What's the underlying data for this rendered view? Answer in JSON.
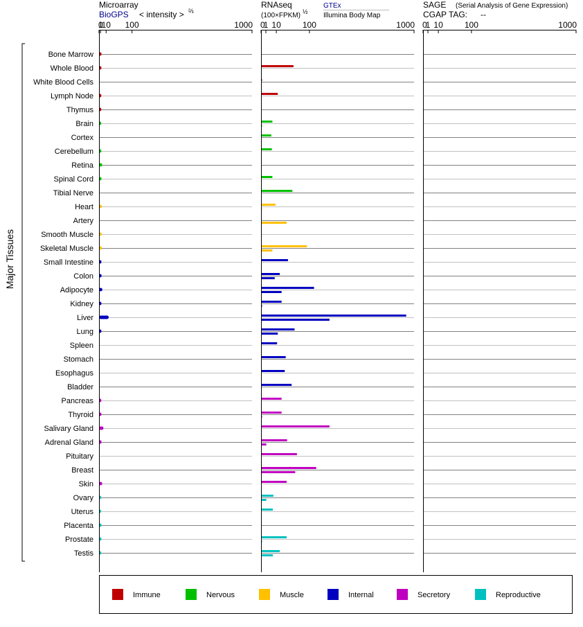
{
  "header": {
    "microarray": {
      "title": "Microarray",
      "source": "BioGPS",
      "units_label": "< intensity >",
      "units_exp": "⅔"
    },
    "rnaseq": {
      "title": "RNAseq",
      "units_label": "(100×FPKM)",
      "units_exp": "½",
      "source_1": "GTEx",
      "source_2": "Illumina Body Map"
    },
    "sage": {
      "title": "SAGE",
      "subtitle": "(Serial Analysis of Gene Expression)",
      "tag_label": "CGAP TAG:",
      "tag_value": "--"
    }
  },
  "side_label": "Major Tissues",
  "colors": {
    "Immune": "#c00000",
    "Nervous": "#00c000",
    "Muscle": "#ffc000",
    "Internal": "#0000c0",
    "Secretory": "#c000c0",
    "Reproductive": "#00c0c0"
  },
  "legend": [
    "Immune",
    "Nervous",
    "Muscle",
    "Internal",
    "Secretory",
    "Reproductive"
  ],
  "chart_data": [
    {
      "type": "bar",
      "panel": "Microarray",
      "xscale": "power-2/3",
      "xticks": [
        "0",
        "1",
        "10",
        "100",
        "1000"
      ],
      "xlim": [
        0,
        1000
      ],
      "categories": [
        "Bone Marrow",
        "Whole Blood",
        "White Blood Cells",
        "Lymph Node",
        "Thymus",
        "Brain",
        "Cortex",
        "Cerebellum",
        "Retina",
        "Spinal Cord",
        "Tibial Nerve",
        "Heart",
        "Artery",
        "Smooth Muscle",
        "Skeletal Muscle",
        "Small Intestine",
        "Colon",
        "Adipocyte",
        "Kidney",
        "Liver",
        "Lung",
        "Spleen",
        "Stomach",
        "Esophagus",
        "Bladder",
        "Pancreas",
        "Thyroid",
        "Salivary Gland",
        "Adrenal Gland",
        "Pituitary",
        "Breast",
        "Skin",
        "Ovary",
        "Uterus",
        "Placenta",
        "Prostate",
        "Testis"
      ],
      "groups": [
        "Immune",
        "Immune",
        "Immune",
        "Immune",
        "Immune",
        "Nervous",
        "Nervous",
        "Nervous",
        "Nervous",
        "Nervous",
        "Nervous",
        "Muscle",
        "Muscle",
        "Muscle",
        "Muscle",
        "Internal",
        "Internal",
        "Internal",
        "Internal",
        "Internal",
        "Internal",
        "Internal",
        "Internal",
        "Internal",
        "Internal",
        "Secretory",
        "Secretory",
        "Secretory",
        "Secretory",
        "Secretory",
        "Secretory",
        "Secretory",
        "Reproductive",
        "Reproductive",
        "Reproductive",
        "Reproductive",
        "Reproductive"
      ],
      "values": [
        2.1,
        2.0,
        null,
        1.9,
        1.9,
        1.7,
        null,
        1.9,
        3.0,
        2.1,
        null,
        2.5,
        null,
        2.3,
        2.5,
        2.0,
        2.2,
        3.2,
        2.0,
        16,
        2.0,
        null,
        null,
        null,
        null,
        1.9,
        2.0,
        5.0,
        2.1,
        null,
        null,
        3.0,
        1.7,
        1.6,
        2.1,
        2.0,
        1.8
      ]
    },
    {
      "type": "bar",
      "panel": "RNAseq",
      "xscale": "power-1/2",
      "xticks": [
        "0",
        "1",
        "10",
        "100",
        "1000"
      ],
      "xlim": [
        0,
        1000
      ],
      "categories": [
        "Bone Marrow",
        "Whole Blood",
        "White Blood Cells",
        "Lymph Node",
        "Thymus",
        "Brain",
        "Cortex",
        "Cerebellum",
        "Retina",
        "Spinal Cord",
        "Tibial Nerve",
        "Heart",
        "Artery",
        "Smooth Muscle",
        "Skeletal Muscle",
        "Small Intestine",
        "Colon",
        "Adipocyte",
        "Kidney",
        "Liver",
        "Lung",
        "Spleen",
        "Stomach",
        "Esophagus",
        "Bladder",
        "Pancreas",
        "Thyroid",
        "Salivary Gland",
        "Adrenal Gland",
        "Pituitary",
        "Breast",
        "Skin",
        "Ovary",
        "Uterus",
        "Placenta",
        "Prostate",
        "Testis"
      ],
      "series": [
        {
          "name": "GTEx",
          "values": [
            null,
            45,
            0.01,
            12,
            null,
            5.5,
            4.5,
            5,
            null,
            5.5,
            42,
            9,
            null,
            null,
            90,
            31,
            15,
            120,
            18,
            900,
            48,
            11,
            26,
            24,
            40,
            18,
            18,
            200,
            29,
            55,
            130,
            28,
            6.5,
            6,
            null,
            28,
            15
          ]
        },
        {
          "name": "Illumina Body Map",
          "values": [
            null,
            null,
            null,
            null,
            null,
            0.003,
            null,
            null,
            null,
            null,
            null,
            0.002,
            28,
            null,
            5.5,
            null,
            8,
            18,
            0.003,
            200,
            12,
            null,
            null,
            null,
            null,
            null,
            0.004,
            null,
            1.2,
            null,
            50,
            null,
            1.2,
            null,
            null,
            0.003,
            6
          ]
        }
      ]
    },
    {
      "type": "bar",
      "panel": "SAGE",
      "xscale": "power-1/2",
      "xticks": [
        "0",
        "1",
        "10",
        "100",
        "1000"
      ],
      "xlim": [
        0,
        1000
      ],
      "categories": [
        "Bone Marrow",
        "Whole Blood",
        "White Blood Cells",
        "Lymph Node",
        "Thymus",
        "Brain",
        "Cortex",
        "Cerebellum",
        "Retina",
        "Spinal Cord",
        "Tibial Nerve",
        "Heart",
        "Artery",
        "Smooth Muscle",
        "Skeletal Muscle",
        "Small Intestine",
        "Colon",
        "Adipocyte",
        "Kidney",
        "Liver",
        "Lung",
        "Spleen",
        "Stomach",
        "Esophagus",
        "Bladder",
        "Pancreas",
        "Thyroid",
        "Salivary Gland",
        "Adrenal Gland",
        "Pituitary",
        "Breast",
        "Skin",
        "Ovary",
        "Uterus",
        "Placenta",
        "Prostate",
        "Testis"
      ],
      "values": [
        null,
        null,
        null,
        null,
        null,
        null,
        null,
        null,
        null,
        null,
        null,
        null,
        null,
        null,
        null,
        null,
        null,
        null,
        null,
        null,
        null,
        null,
        null,
        null,
        null,
        null,
        null,
        null,
        null,
        null,
        null,
        null,
        null,
        null,
        null,
        null,
        null
      ]
    }
  ]
}
